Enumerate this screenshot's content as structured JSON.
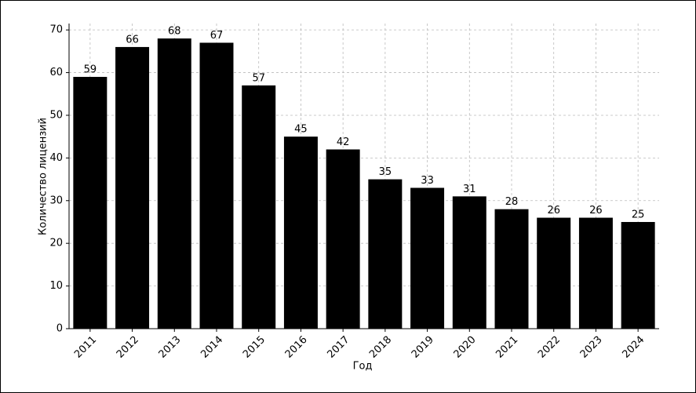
{
  "chart_data": {
    "type": "bar",
    "x_label": "Год",
    "y_label": "Количество лицензий",
    "categories": [
      "2011",
      "2012",
      "2013",
      "2014",
      "2015",
      "2016",
      "2017",
      "2018",
      "2019",
      "2020",
      "2021",
      "2022",
      "2023",
      "2024"
    ],
    "values": [
      59,
      66,
      68,
      67,
      57,
      45,
      42,
      35,
      33,
      31,
      28,
      26,
      26,
      25
    ],
    "color": "#000000",
    "ylim": [
      0,
      71.5
    ],
    "yticks": [
      0,
      10,
      20,
      30,
      40,
      50,
      60,
      70
    ],
    "grid": true
  }
}
